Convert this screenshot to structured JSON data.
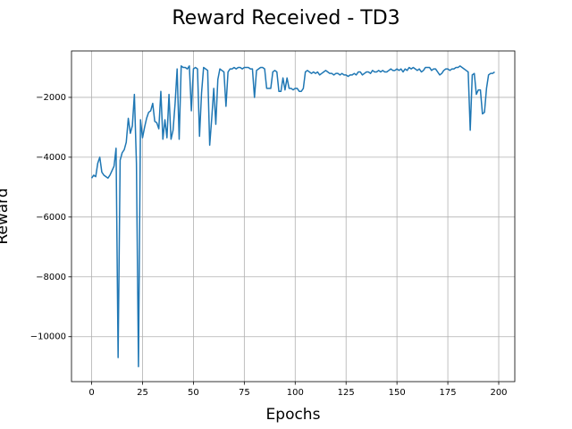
{
  "chart_data": {
    "type": "line",
    "title": "Reward Received - TD3",
    "x_label": "Epochs",
    "y_label": "Reward",
    "x": [
      0,
      1,
      2,
      3,
      4,
      5,
      6,
      7,
      8,
      9,
      10,
      11,
      12,
      13,
      14,
      15,
      16,
      17,
      18,
      19,
      20,
      21,
      22,
      23,
      24,
      25,
      26,
      27,
      28,
      29,
      30,
      31,
      32,
      33,
      34,
      35,
      36,
      37,
      38,
      39,
      40,
      41,
      42,
      43,
      44,
      45,
      46,
      47,
      48,
      49,
      50,
      51,
      52,
      53,
      54,
      55,
      56,
      57,
      58,
      59,
      60,
      61,
      62,
      63,
      64,
      65,
      66,
      67,
      68,
      69,
      70,
      71,
      72,
      73,
      74,
      75,
      76,
      77,
      78,
      79,
      80,
      81,
      82,
      83,
      84,
      85,
      86,
      87,
      88,
      89,
      90,
      91,
      92,
      93,
      94,
      95,
      96,
      97,
      98,
      99,
      100,
      101,
      102,
      103,
      104,
      105,
      106,
      107,
      108,
      109,
      110,
      111,
      112,
      113,
      114,
      115,
      116,
      117,
      118,
      119,
      120,
      121,
      122,
      123,
      124,
      125,
      126,
      127,
      128,
      129,
      130,
      131,
      132,
      133,
      134,
      135,
      136,
      137,
      138,
      139,
      140,
      141,
      142,
      143,
      144,
      145,
      146,
      147,
      148,
      149,
      150,
      151,
      152,
      153,
      154,
      155,
      156,
      157,
      158,
      159,
      160,
      161,
      162,
      163,
      164,
      165,
      166,
      167,
      168,
      169,
      170,
      171,
      172,
      173,
      174,
      175,
      176,
      177,
      178,
      179,
      180,
      181,
      182,
      183,
      184,
      185,
      186,
      187,
      188,
      189,
      190,
      191,
      192,
      193,
      194,
      195,
      196,
      197,
      198
    ],
    "series": [
      {
        "color": "#1f77b4",
        "values": [
          -4700,
          -4600,
          -4650,
          -4200,
          -4000,
          -4500,
          -4600,
          -4650,
          -4700,
          -4600,
          -4450,
          -4300,
          -3700,
          -10700,
          -4100,
          -3850,
          -3750,
          -3500,
          -2700,
          -3200,
          -2950,
          -1900,
          -4200,
          -11000,
          -2750,
          -3350,
          -3000,
          -2700,
          -2500,
          -2450,
          -2200,
          -2800,
          -2850,
          -3050,
          -1800,
          -3400,
          -2750,
          -3350,
          -1900,
          -3400,
          -3100,
          -2200,
          -1050,
          -3400,
          -950,
          -1000,
          -1000,
          -1050,
          -950,
          -2450,
          -1050,
          -1000,
          -1050,
          -3300,
          -1850,
          -1000,
          -1050,
          -1100,
          -3600,
          -2700,
          -1700,
          -2900,
          -1400,
          -1050,
          -1100,
          -1150,
          -2300,
          -1150,
          -1050,
          -1050,
          -1000,
          -1050,
          -1000,
          -1000,
          -1050,
          -1000,
          -1000,
          -1000,
          -1050,
          -1050,
          -2000,
          -1100,
          -1050,
          -1000,
          -1000,
          -1050,
          -1700,
          -1700,
          -1700,
          -1150,
          -1100,
          -1150,
          -1800,
          -1800,
          -1350,
          -1750,
          -1350,
          -1700,
          -1700,
          -1750,
          -1700,
          -1700,
          -1800,
          -1800,
          -1700,
          -1150,
          -1100,
          -1150,
          -1200,
          -1150,
          -1200,
          -1150,
          -1250,
          -1200,
          -1150,
          -1100,
          -1150,
          -1200,
          -1200,
          -1250,
          -1200,
          -1200,
          -1250,
          -1200,
          -1250,
          -1250,
          -1300,
          -1250,
          -1250,
          -1200,
          -1250,
          -1150,
          -1150,
          -1250,
          -1200,
          -1150,
          -1150,
          -1200,
          -1100,
          -1150,
          -1150,
          -1100,
          -1150,
          -1100,
          -1150,
          -1150,
          -1100,
          -1050,
          -1100,
          -1100,
          -1050,
          -1100,
          -1050,
          -1150,
          -1050,
          -1100,
          -1000,
          -1050,
          -1000,
          -1050,
          -1100,
          -1050,
          -1150,
          -1100,
          -1000,
          -1000,
          -1000,
          -1100,
          -1050,
          -1050,
          -1150,
          -1250,
          -1200,
          -1100,
          -1050,
          -1050,
          -1100,
          -1050,
          -1050,
          -1000,
          -1000,
          -950,
          -1000,
          -1050,
          -1100,
          -1150,
          -3100,
          -1250,
          -1200,
          -1900,
          -1750,
          -1750,
          -2550,
          -2500,
          -1700,
          -1250,
          -1200,
          -1200,
          -1150
        ]
      }
    ],
    "xlim": [
      -9.9,
      207.9
    ],
    "ylim": [
      -11502,
      -448
    ],
    "xticks": [
      0,
      25,
      50,
      75,
      100,
      125,
      150,
      175,
      200
    ],
    "yticks": [
      {
        "value": -10000,
        "label": "−10000"
      },
      {
        "value": -8000,
        "label": "−8000"
      },
      {
        "value": -6000,
        "label": "−6000"
      },
      {
        "value": -4000,
        "label": "−4000"
      },
      {
        "value": -2000,
        "label": "−2000"
      }
    ],
    "grid": true
  }
}
